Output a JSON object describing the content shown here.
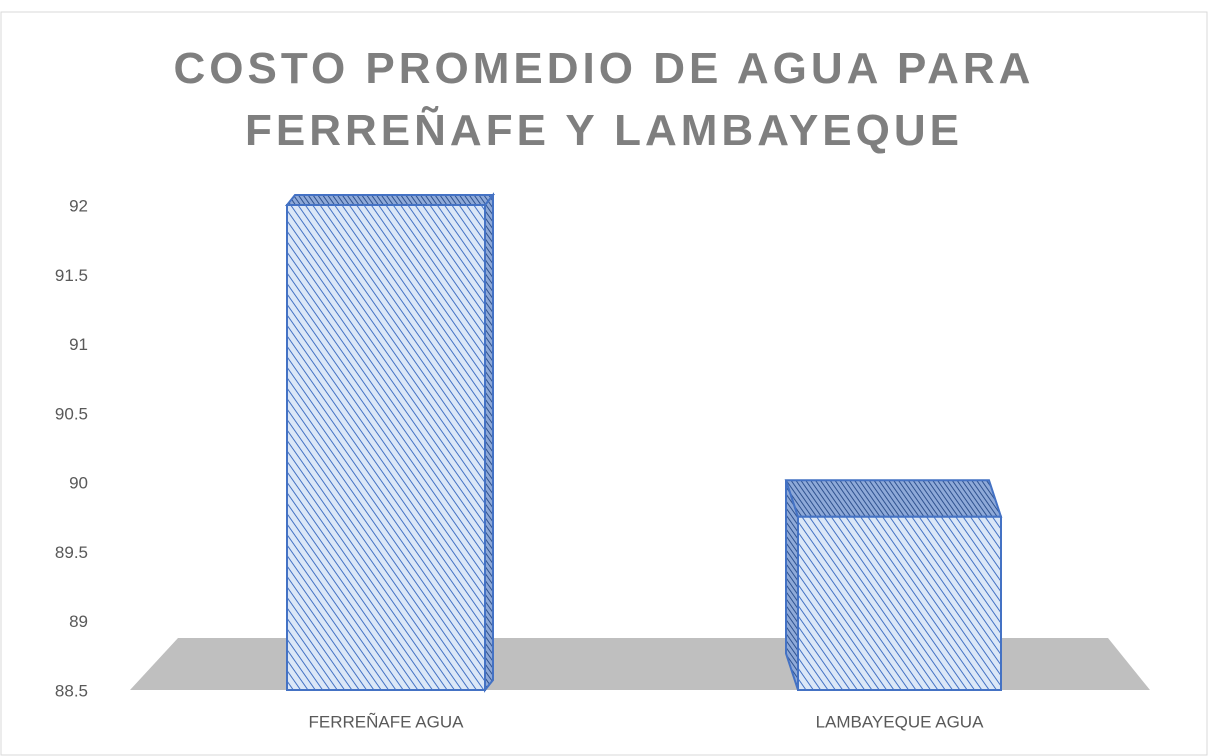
{
  "chart_data": {
    "type": "bar3d",
    "title": "COSTO PROMEDIO DE AGUA PARA FERREÑAFE Y LAMBAYEQUE",
    "categories": [
      "FERREÑAFE AGUA",
      "LAMBAYEQUE AGUA"
    ],
    "values": [
      92,
      89.75
    ],
    "color": "#4472c4",
    "ylim": [
      88.5,
      92
    ],
    "yticks": [
      88.5,
      89,
      89.5,
      90,
      90.5,
      91,
      91.5,
      92
    ],
    "grid": false
  }
}
